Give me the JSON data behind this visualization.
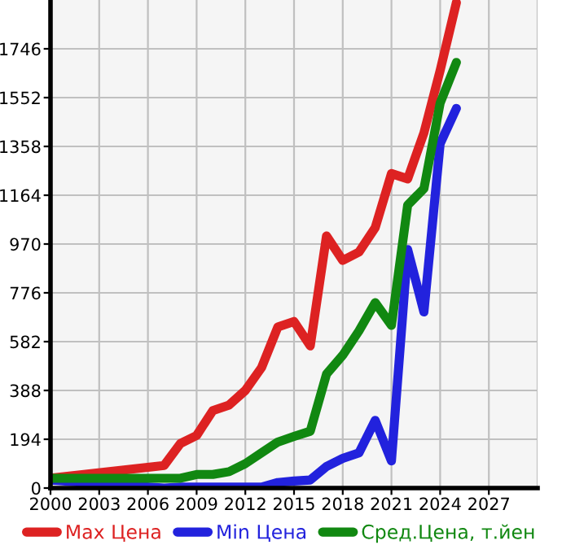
{
  "chart_data": {
    "type": "line",
    "xlim": [
      2000,
      2030
    ],
    "xticks": [
      2000,
      2003,
      2006,
      2009,
      2012,
      2015,
      2018,
      2021,
      2024,
      2027
    ],
    "ylim": [
      0,
      1940
    ],
    "yticks": [
      0,
      194,
      388,
      582,
      776,
      970,
      1164,
      1358,
      1552,
      1746
    ],
    "grid": true,
    "legend": "bottom",
    "marker": "none",
    "line_style": "solid",
    "series": [
      {
        "name": "Max Цена",
        "color": "#dd2222",
        "x": [
          2000,
          2007,
          2008,
          2009,
          2010,
          2011,
          2012,
          2013,
          2014,
          2015,
          2016,
          2017,
          2018,
          2019,
          2020,
          2021,
          2022,
          2023,
          2024,
          2025
        ],
        "values": [
          39,
          90,
          177,
          209,
          308,
          330,
          388,
          479,
          640,
          662,
          565,
          1002,
          905,
          938,
          1035,
          1250,
          1229,
          1412,
          1660,
          1930
        ]
      },
      {
        "name": "Min Цена",
        "color": "#2222dd",
        "x": [
          2000,
          2007,
          2008,
          2013,
          2014,
          2015,
          2016,
          2017,
          2018,
          2019,
          2020,
          2021,
          2022,
          2023,
          2024,
          2025
        ],
        "values": [
          32,
          0,
          4,
          4,
          22,
          28,
          32,
          86,
          118,
          140,
          269,
          108,
          948,
          700,
          1369,
          1509
        ]
      },
      {
        "name": "Сред.Цена, т.йен",
        "color": "#118811",
        "x": [
          2000,
          2008,
          2009,
          2010,
          2011,
          2012,
          2013,
          2014,
          2015,
          2016,
          2017,
          2018,
          2019,
          2020,
          2021,
          2022,
          2023,
          2024,
          2025
        ],
        "values": [
          39,
          39,
          54,
          54,
          65,
          97,
          140,
          183,
          205,
          226,
          453,
          528,
          625,
          737,
          647,
          1125,
          1190,
          1530,
          1692
        ]
      }
    ]
  }
}
